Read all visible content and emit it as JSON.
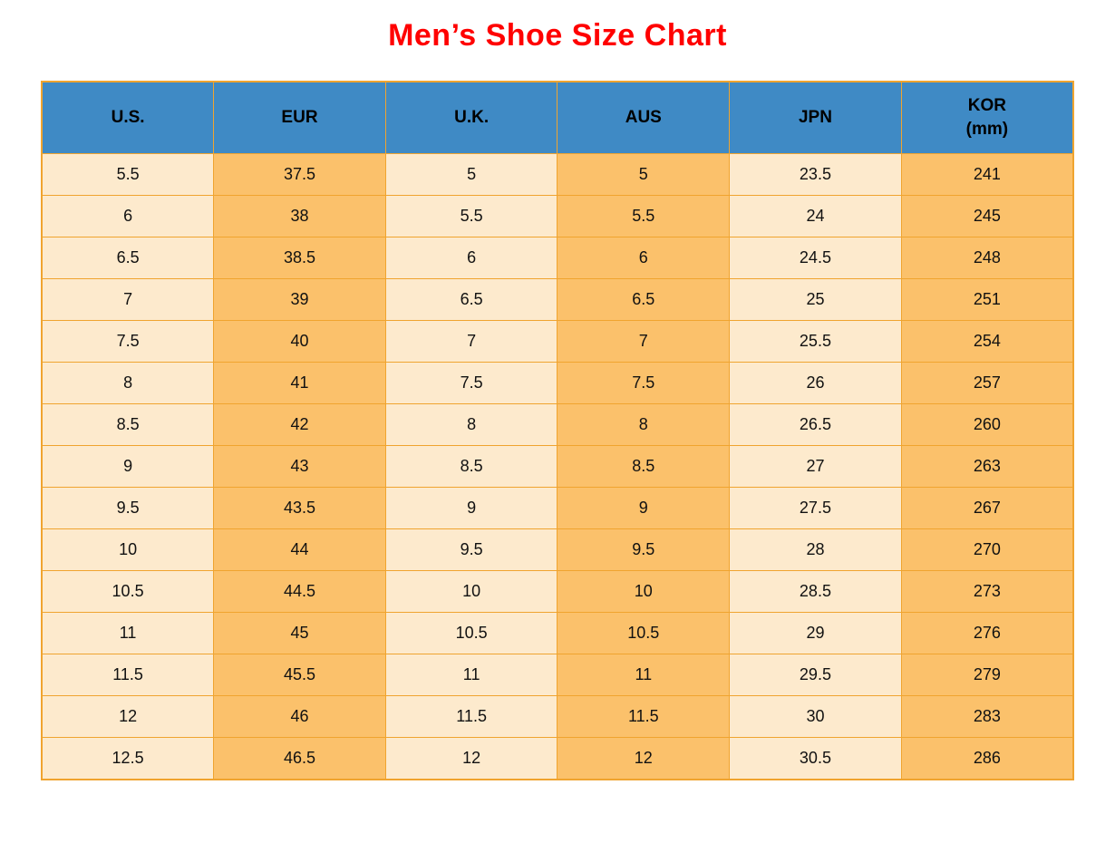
{
  "title": {
    "text": "Men’s Shoe Size Chart",
    "color": "#ff0000"
  },
  "table": {
    "columns": [
      {
        "label": "U.S.",
        "sublabel": ""
      },
      {
        "label": "EUR",
        "sublabel": ""
      },
      {
        "label": "U.K.",
        "sublabel": ""
      },
      {
        "label": "AUS",
        "sublabel": ""
      },
      {
        "label": "JPN",
        "sublabel": ""
      },
      {
        "label": "KOR",
        "sublabel": "(mm)"
      }
    ],
    "colors": {
      "header_bg": "#3f8ac5",
      "header_text": "#000000",
      "column_light": "#fdeacd",
      "column_orange": "#fbc16b",
      "border": "#f0a42f",
      "cell_text": "#111111",
      "title": "#ff0000",
      "page_bg": "#ffffff"
    }
  },
  "chart_data": {
    "type": "table",
    "title": "Men’s Shoe Size Chart",
    "columns": [
      "U.S.",
      "EUR",
      "U.K.",
      "AUS",
      "JPN",
      "KOR (mm)"
    ],
    "rows": [
      [
        "5.5",
        "37.5",
        "5",
        "5",
        "23.5",
        "241"
      ],
      [
        "6",
        "38",
        "5.5",
        "5.5",
        "24",
        "245"
      ],
      [
        "6.5",
        "38.5",
        "6",
        "6",
        "24.5",
        "248"
      ],
      [
        "7",
        "39",
        "6.5",
        "6.5",
        "25",
        "251"
      ],
      [
        "7.5",
        "40",
        "7",
        "7",
        "25.5",
        "254"
      ],
      [
        "8",
        "41",
        "7.5",
        "7.5",
        "26",
        "257"
      ],
      [
        "8.5",
        "42",
        "8",
        "8",
        "26.5",
        "260"
      ],
      [
        "9",
        "43",
        "8.5",
        "8.5",
        "27",
        "263"
      ],
      [
        "9.5",
        "43.5",
        "9",
        "9",
        "27.5",
        "267"
      ],
      [
        "10",
        "44",
        "9.5",
        "9.5",
        "28",
        "270"
      ],
      [
        "10.5",
        "44.5",
        "10",
        "10",
        "28.5",
        "273"
      ],
      [
        "11",
        "45",
        "10.5",
        "10.5",
        "29",
        "276"
      ],
      [
        "11.5",
        "45.5",
        "11",
        "11",
        "29.5",
        "279"
      ],
      [
        "12",
        "46",
        "11.5",
        "11.5",
        "30",
        "283"
      ],
      [
        "12.5",
        "46.5",
        "12",
        "12",
        "30.5",
        "286"
      ]
    ],
    "layout": {
      "header_position": "top",
      "grid": true,
      "column_band_colors": [
        "#fdeacd",
        "#fbc16b"
      ]
    }
  }
}
